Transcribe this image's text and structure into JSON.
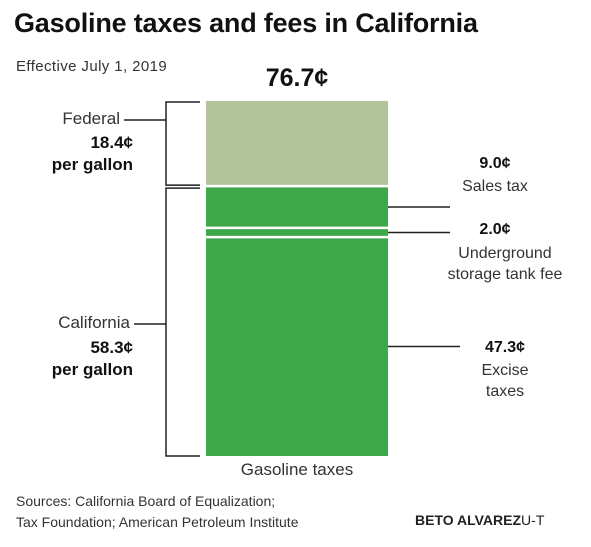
{
  "title": "Gasoline taxes and fees in California",
  "subtitle": "Effective July 1, 2019",
  "chart_data": {
    "type": "bar",
    "categories": [
      "Gasoline taxes"
    ],
    "unit": "¢",
    "total": "76.7¢",
    "total_value": 76.7,
    "stacked": true,
    "series": [
      {
        "name": "Federal",
        "value": 18.4,
        "color": "#b3c49a"
      },
      {
        "name": "Sales tax",
        "value": 9.0,
        "color": "#3fa84a"
      },
      {
        "name": "Underground storage tank fee",
        "value": 2.0,
        "color": "#3fa84a"
      },
      {
        "name": "Excise taxes",
        "value": 47.3,
        "color": "#3fa84a"
      }
    ],
    "groups": [
      {
        "label": "Federal",
        "amount": "18.4¢",
        "per": "per gallon",
        "value": 18.4
      },
      {
        "label": "California",
        "amount": "58.3¢",
        "per": "per gallon",
        "value": 58.3
      }
    ],
    "annotations": [
      {
        "value_text": "9.0¢",
        "label_lines": [
          "Sales tax"
        ]
      },
      {
        "value_text": "2.0¢",
        "label_lines": [
          "Underground",
          "storage tank fee"
        ]
      },
      {
        "value_text": "47.3¢",
        "label_lines": [
          "Excise",
          "taxes"
        ]
      }
    ]
  },
  "footer": {
    "source_line1": "Sources: California Board of Equalization;",
    "source_line2": "Tax Foundation; American Petroleum Institute",
    "credit_name": "BETO ALVAREZ",
    "credit_org": "U-T"
  }
}
